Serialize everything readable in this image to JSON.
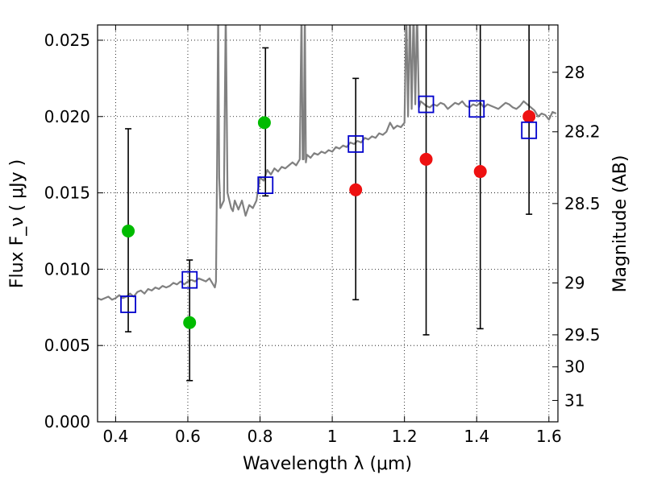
{
  "chart_data": {
    "type": "scatter",
    "xlabel": "Wavelength  λ (μm)",
    "ylabel": "Flux  F_ν  ( μJy )",
    "ylabel_right": "Magnitude (AB)",
    "xlim": [
      0.35,
      1.625
    ],
    "ylim": [
      0.0,
      0.026
    ],
    "grid": true,
    "x_ticks": [
      0.4,
      0.6,
      0.8,
      1.0,
      1.2,
      1.4,
      1.6
    ],
    "x_tick_labels": [
      "0.4",
      "0.6",
      "0.8",
      "1",
      "1.2",
      "1.4",
      "1.6"
    ],
    "y_ticks": [
      0.0,
      0.005,
      0.01,
      0.015,
      0.02,
      0.025
    ],
    "y_tick_labels": [
      "0.000",
      "0.005",
      "0.010",
      "0.015",
      "0.020",
      "0.025"
    ],
    "mag_ticks": [
      {
        "flux": 0.0229,
        "label": "28"
      },
      {
        "flux": 0.019,
        "label": "28.2"
      },
      {
        "flux": 0.0143,
        "label": "28.5"
      },
      {
        "flux": 0.0091,
        "label": "29"
      },
      {
        "flux": 0.0057,
        "label": "29.5"
      },
      {
        "flux": 0.0036,
        "label": "30"
      },
      {
        "flux": 0.0014,
        "label": "31"
      }
    ],
    "series": [
      {
        "name": "model SED",
        "kind": "line",
        "color": "#808080",
        "x": [
          0.35,
          0.36,
          0.37,
          0.38,
          0.39,
          0.4,
          0.41,
          0.42,
          0.43,
          0.44,
          0.45,
          0.46,
          0.47,
          0.48,
          0.49,
          0.5,
          0.51,
          0.52,
          0.53,
          0.54,
          0.55,
          0.56,
          0.57,
          0.58,
          0.59,
          0.6,
          0.61,
          0.62,
          0.63,
          0.64,
          0.65,
          0.66,
          0.67,
          0.675,
          0.678,
          0.681,
          0.684,
          0.687,
          0.69,
          0.7,
          0.705,
          0.71,
          0.72,
          0.725,
          0.73,
          0.74,
          0.75,
          0.76,
          0.77,
          0.78,
          0.79,
          0.8,
          0.81,
          0.82,
          0.83,
          0.84,
          0.85,
          0.86,
          0.87,
          0.88,
          0.89,
          0.9,
          0.91,
          0.915,
          0.918,
          0.921,
          0.924,
          0.927,
          0.93,
          0.94,
          0.95,
          0.96,
          0.97,
          0.98,
          0.99,
          1.0,
          1.01,
          1.02,
          1.03,
          1.04,
          1.05,
          1.06,
          1.07,
          1.08,
          1.09,
          1.1,
          1.11,
          1.12,
          1.13,
          1.14,
          1.15,
          1.16,
          1.17,
          1.18,
          1.19,
          1.2,
          1.205,
          1.21,
          1.215,
          1.22,
          1.225,
          1.23,
          1.235,
          1.24,
          1.245,
          1.25,
          1.26,
          1.27,
          1.28,
          1.29,
          1.3,
          1.31,
          1.32,
          1.33,
          1.34,
          1.35,
          1.36,
          1.37,
          1.38,
          1.39,
          1.4,
          1.41,
          1.42,
          1.43,
          1.44,
          1.45,
          1.46,
          1.47,
          1.48,
          1.49,
          1.5,
          1.51,
          1.52,
          1.53,
          1.54,
          1.55,
          1.56,
          1.57,
          1.58,
          1.59,
          1.6,
          1.61,
          1.62
        ],
        "y": [
          0.0081,
          0.008,
          0.0081,
          0.0082,
          0.008,
          0.0081,
          0.0083,
          0.0081,
          0.0082,
          0.0084,
          0.0082,
          0.0085,
          0.0086,
          0.0084,
          0.0087,
          0.0086,
          0.0088,
          0.0087,
          0.0089,
          0.0088,
          0.0089,
          0.0091,
          0.009,
          0.0092,
          0.009,
          0.0092,
          0.0093,
          0.0092,
          0.0094,
          0.0093,
          0.0092,
          0.0094,
          0.009,
          0.0088,
          0.0092,
          0.0165,
          0.027,
          0.016,
          0.014,
          0.0145,
          0.027,
          0.015,
          0.014,
          0.0138,
          0.0145,
          0.0139,
          0.0145,
          0.0135,
          0.0142,
          0.014,
          0.0145,
          0.016,
          0.0158,
          0.0165,
          0.0162,
          0.0166,
          0.0164,
          0.0167,
          0.0166,
          0.0168,
          0.017,
          0.0168,
          0.0172,
          0.027,
          0.0172,
          0.0172,
          0.027,
          0.017,
          0.0175,
          0.0173,
          0.0176,
          0.0175,
          0.0177,
          0.0176,
          0.0178,
          0.0177,
          0.018,
          0.0179,
          0.0181,
          0.018,
          0.0183,
          0.0182,
          0.0184,
          0.0183,
          0.0186,
          0.0185,
          0.0187,
          0.0186,
          0.0189,
          0.0188,
          0.019,
          0.0196,
          0.0192,
          0.0194,
          0.0193,
          0.0196,
          0.027,
          0.02,
          0.027,
          0.0205,
          0.027,
          0.0208,
          0.027,
          0.0206,
          0.021,
          0.0209,
          0.0207,
          0.0206,
          0.0208,
          0.0207,
          0.0209,
          0.0208,
          0.0205,
          0.0207,
          0.0209,
          0.0208,
          0.021,
          0.0207,
          0.0206,
          0.0208,
          0.0207,
          0.0209,
          0.0206,
          0.0208,
          0.0207,
          0.0206,
          0.0205,
          0.0207,
          0.0209,
          0.0208,
          0.0206,
          0.0205,
          0.0207,
          0.021,
          0.0208,
          0.0206,
          0.0204,
          0.02,
          0.0202,
          0.0201,
          0.0198,
          0.0203,
          0.0202
        ]
      },
      {
        "name": "green points",
        "kind": "points",
        "color": "#00bb00",
        "x": [
          0.435,
          0.605,
          0.812
        ],
        "y": [
          0.0125,
          0.0065,
          0.0196
        ]
      },
      {
        "name": "red points",
        "kind": "points",
        "color": "#ee1111",
        "x": [
          1.065,
          1.26,
          1.41,
          1.545
        ],
        "y": [
          0.0152,
          0.0172,
          0.0164,
          0.02
        ]
      },
      {
        "name": "model photometry",
        "kind": "squares",
        "color": "#0000cc",
        "x": [
          0.435,
          0.605,
          0.815,
          1.065,
          1.26,
          1.4,
          1.545
        ],
        "y": [
          0.0077,
          0.0093,
          0.0155,
          0.0182,
          0.0208,
          0.0205,
          0.0191
        ]
      },
      {
        "name": "error bars",
        "kind": "errorbars",
        "color": "#000000",
        "x": [
          0.435,
          0.605,
          0.815,
          1.065,
          1.26,
          1.41,
          1.545
        ],
        "low": [
          0.0059,
          0.0027,
          0.0148,
          0.008,
          0.0057,
          0.0061,
          0.0136
        ],
        "high": [
          0.0192,
          0.0106,
          0.0245,
          0.0225,
          0.027,
          0.027,
          0.027
        ]
      }
    ]
  }
}
